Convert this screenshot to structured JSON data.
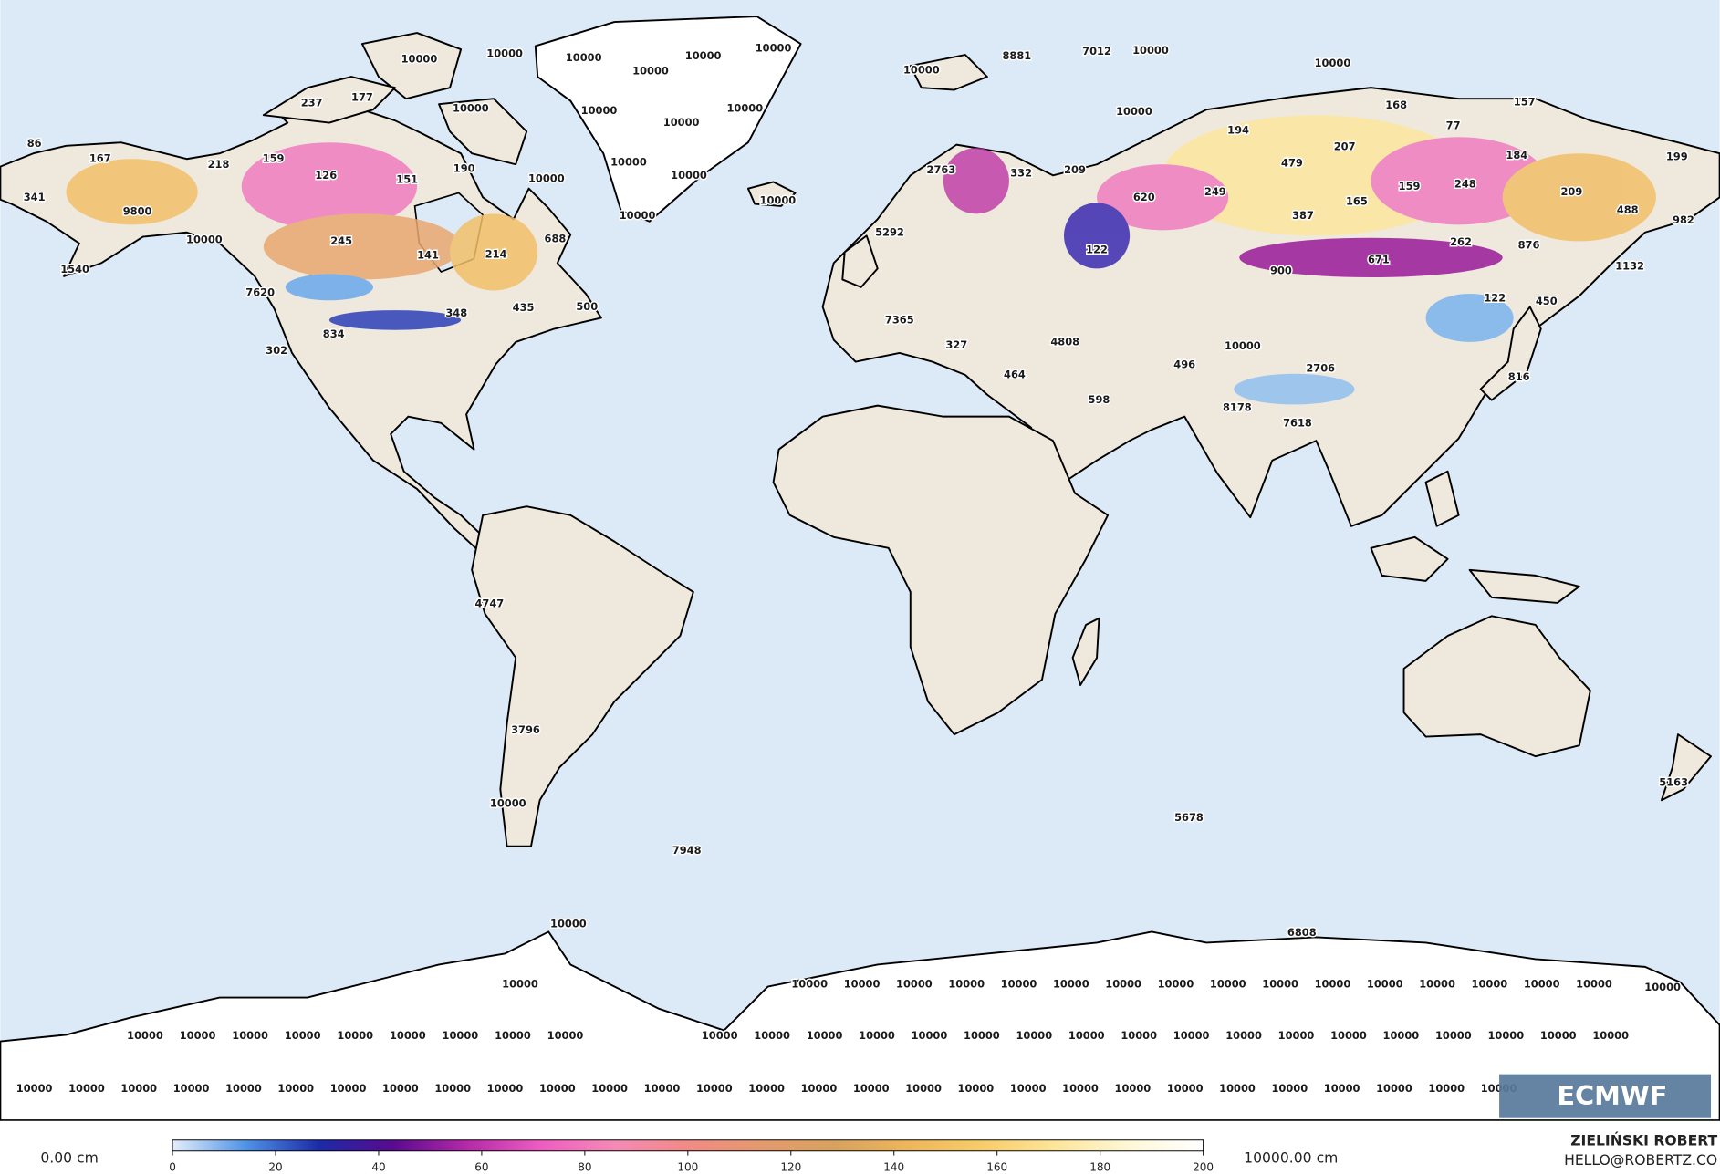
{
  "map_labels": [
    86,
    167,
    218,
    159,
    126,
    151,
    190,
    10000,
    341,
    9800,
    10000,
    245,
    141,
    214,
    688,
    1540,
    7620,
    435,
    500,
    348,
    834,
    302,
    237,
    177,
    10000,
    10000,
    10000,
    10000,
    10000,
    10000,
    10000,
    10000,
    10000,
    10000,
    10000,
    10000,
    10000,
    10000,
    10000,
    8881,
    7012,
    10000,
    10000,
    10000,
    168,
    157,
    77,
    194,
    207,
    184,
    199,
    2763,
    332,
    209,
    479,
    159,
    248,
    209,
    620,
    249,
    165,
    387,
    488,
    982,
    5292,
    122,
    876,
    262,
    671,
    1132,
    900,
    122,
    450,
    7365,
    4808,
    327,
    496,
    10000,
    2706,
    464,
    816,
    598,
    8178,
    7618,
    4747,
    3796,
    10000,
    5678,
    5163,
    7948,
    10000,
    6808,
    10000,
    10000
  ],
  "antarctica_labels": [
    [
      10000,
      10000,
      10000,
      10000,
      10000,
      10000,
      10000,
      10000,
      10000,
      10000,
      10000,
      10000,
      10000,
      10000,
      10000,
      10000
    ],
    [
      10000,
      10000,
      10000,
      10000,
      10000,
      10000,
      10000,
      10000,
      10000,
      10000,
      10000,
      10000,
      10000,
      10000,
      10000,
      10000,
      10000,
      10000,
      10000,
      10000,
      10000,
      10000,
      10000,
      10000,
      10000,
      10000,
      10000
    ],
    [
      10000,
      10000,
      10000,
      10000,
      10000,
      10000,
      10000,
      10000,
      10000,
      10000,
      10000,
      10000,
      10000,
      10000,
      10000,
      10000,
      10000,
      10000,
      10000,
      10000,
      10000,
      10000,
      10000,
      10000,
      10000,
      10000,
      10000,
      10000,
      10000
    ]
  ],
  "colorbar": {
    "lim": [
      0,
      200
    ],
    "ticks": [
      0,
      20,
      40,
      60,
      80,
      100,
      120,
      140,
      160,
      180,
      200
    ],
    "colors": [
      "#e4eefa",
      "#4f92e6",
      "#1c2aa8",
      "#5a0a90",
      "#b42aa8",
      "#ee5cc2",
      "#f58ab6",
      "#f28a86",
      "#e49a6e",
      "#d8a25e",
      "#eeb65c",
      "#f8cc6a",
      "#fde59a",
      "#fff8d8",
      "#ffffff"
    ]
  },
  "min_label": "0.00 cm",
  "max_label": "10000.00 cm",
  "credit": {
    "name": "ZIELIŃSKI ROBERT",
    "email": "HELLO@ROBERTZ.CO"
  },
  "logo": "ECMWF"
}
